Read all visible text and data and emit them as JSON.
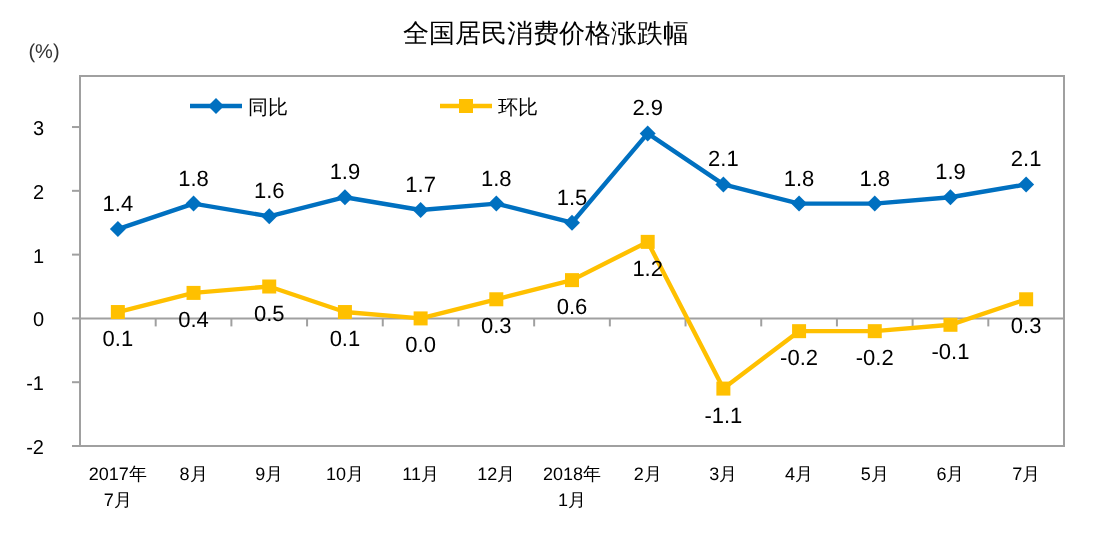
{
  "chart_data": {
    "type": "line",
    "title": "全国居民消费价格涨跌幅",
    "ylabel": "(%)",
    "categories": [
      "2017年\n7月",
      "8月",
      "9月",
      "10月",
      "11月",
      "12月",
      "2018年\n1月",
      "2月",
      "3月",
      "4月",
      "5月",
      "6月",
      "7月"
    ],
    "series": [
      {
        "name": "同比",
        "color": "#0070c0",
        "marker": "diamond",
        "values": [
          1.4,
          1.8,
          1.6,
          1.9,
          1.7,
          1.8,
          1.5,
          2.9,
          2.1,
          1.8,
          1.8,
          1.9,
          2.1
        ],
        "value_labels": [
          "1.4",
          "1.8",
          "1.6",
          "1.9",
          "1.7",
          "1.8",
          "1.5",
          "2.9",
          "2.1",
          "1.8",
          "1.8",
          "1.9",
          "2.1"
        ]
      },
      {
        "name": "环比",
        "color": "#ffc000",
        "marker": "square",
        "values": [
          0.1,
          0.4,
          0.5,
          0.1,
          0.0,
          0.3,
          0.6,
          1.2,
          -1.1,
          -0.2,
          -0.2,
          -0.1,
          0.3
        ],
        "value_labels": [
          "0.1",
          "0.4",
          "0.5",
          "0.1",
          "0.0",
          "0.3",
          "0.6",
          "1.2",
          "-1.1",
          "-0.2",
          "-0.2",
          "-0.1",
          "0.3"
        ]
      }
    ],
    "ylim": [
      -2,
      3.8
    ],
    "yticks": [
      -2,
      -1,
      0,
      1,
      2,
      3
    ],
    "legend": "top",
    "line_style": "solid"
  }
}
